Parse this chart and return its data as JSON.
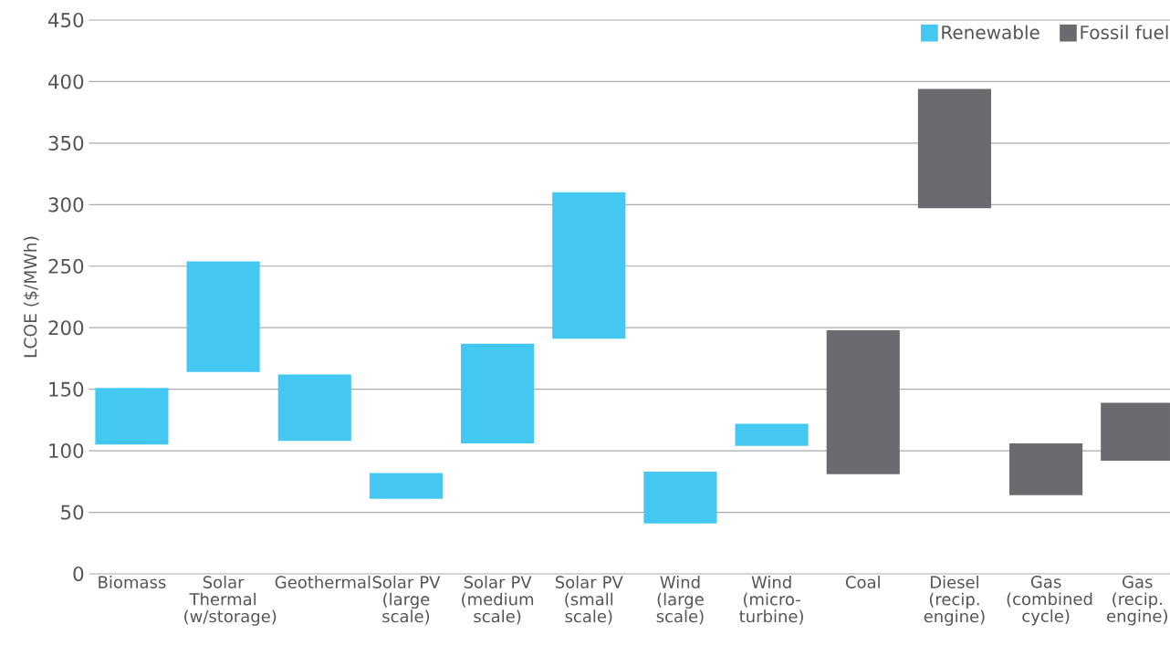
{
  "chart_data": {
    "type": "bar",
    "ylabel": "LCOE ($/MWh)",
    "categories": [
      "Biomass",
      "Solar Thermal (w/storage)",
      "Geothermal",
      "Solar PV (large scale)",
      "Solar PV (medium scale)",
      "Solar PV (small scale)",
      "Wind (large scale)",
      "Wind (micro-turbine)",
      "Coal",
      "Diesel (recip. engine)",
      "Gas (combined cycle)",
      "Gas (recip. engine)"
    ],
    "series": [
      {
        "name": "Renewable",
        "color": "#44c8f2",
        "base": [
          105,
          164,
          108,
          61,
          106,
          191,
          41,
          104,
          null,
          null,
          null,
          null
        ],
        "values": [
          46,
          90,
          54,
          21,
          81,
          119,
          42,
          18,
          null,
          null,
          null,
          null
        ]
      },
      {
        "name": "Fossil fuel",
        "color": "#6b6b6f",
        "base": [
          null,
          null,
          null,
          null,
          null,
          null,
          null,
          null,
          81,
          297,
          64,
          92
        ],
        "values": [
          null,
          null,
          null,
          null,
          null,
          null,
          null,
          null,
          117,
          97,
          42,
          47
        ]
      }
    ],
    "ylim": [
      0,
      450
    ],
    "yticks": [
      0,
      50,
      100,
      150,
      200,
      250,
      300,
      350,
      400,
      450
    ],
    "grid": "y",
    "legend": "top right"
  }
}
